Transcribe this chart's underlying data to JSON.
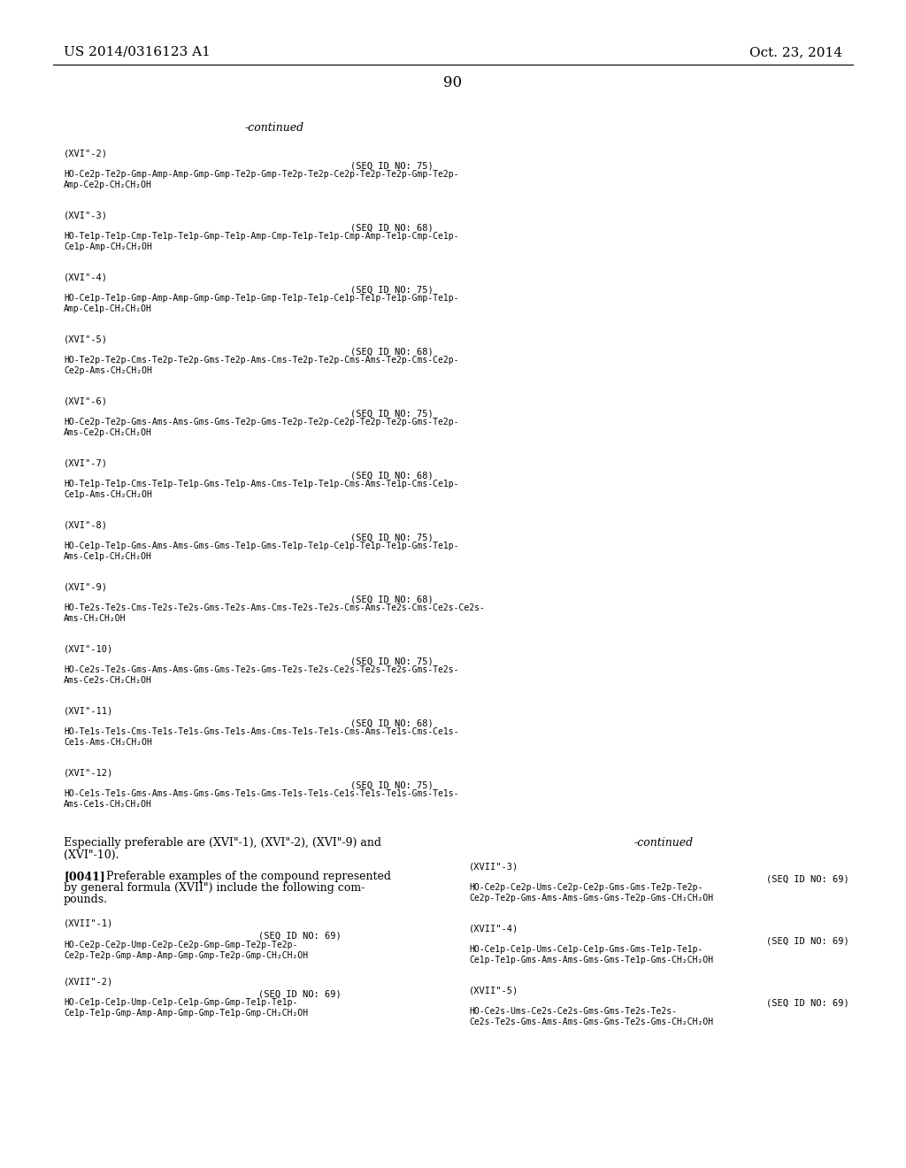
{
  "bg_color": "#ffffff",
  "header_left": "US 2014/0316123 A1",
  "header_right": "Oct. 23, 2014",
  "page_number": "90",
  "continued_top": "-continued",
  "sections": [
    {
      "label": "(XVI\"-2)",
      "seq_id": "(SEQ ID NO: 75)",
      "line1": "HO-Ce2p-Te2p-Gmp-Amp-Amp-Gmp-Gmp-Te2p-Gmp-Te2p-Te2p-Ce2p-Te2p-Te2p-Gmp-Te2p-",
      "line2": "Amp-Ce2p-CH₂CH₂OH"
    },
    {
      "label": "(XVI\"-3)",
      "seq_id": "(SEQ ID NO: 68)",
      "line1": "HO-Te1p-Te1p-Cmp-Te1p-Te1p-Gmp-Te1p-Amp-Cmp-Te1p-Te1p-Cmp-Amp-Te1p-Cmp-Ce1p-",
      "line2": "Ce1p-Amp-CH₂CH₂OH"
    },
    {
      "label": "(XVI\"-4)",
      "seq_id": "(SEQ ID NO: 75)",
      "line1": "HO-Ce1p-Te1p-Gmp-Amp-Amp-Gmp-Gmp-Te1p-Gmp-Te1p-Te1p-Ce1p-Te1p-Te1p-Gmp-Te1p-",
      "line2": "Amp-Ce1p-CH₂CH₂OH"
    },
    {
      "label": "(XVI\"-5)",
      "seq_id": "(SEQ ID NO: 68)",
      "line1": "HO-Te2p-Te2p-Cms-Te2p-Te2p-Gms-Te2p-Ams-Cms-Te2p-Te2p-Cms-Ams-Te2p-Cms-Ce2p-",
      "line2": "Ce2p-Ams-CH₂CH₂OH"
    },
    {
      "label": "(XVI\"-6)",
      "seq_id": "(SEQ ID NO: 75)",
      "line1": "HO-Ce2p-Te2p-Gms-Ams-Ams-Gms-Gms-Te2p-Gms-Te2p-Te2p-Ce2p-Te2p-Te2p-Gms-Te2p-",
      "line2": "Ams-Ce2p-CH₂CH₂OH"
    },
    {
      "label": "(XVI\"-7)",
      "seq_id": "(SEQ ID NO: 68)",
      "line1": "HO-Te1p-Te1p-Cms-Te1p-Te1p-Gms-Te1p-Ams-Cms-Te1p-Te1p-Cms-Ams-Te1p-Cms-Ce1p-",
      "line2": "Ce1p-Ams-CH₂CH₂OH"
    },
    {
      "label": "(XVI\"-8)",
      "seq_id": "(SEQ ID NO: 75)",
      "line1": "HO-Ce1p-Te1p-Gms-Ams-Ams-Gms-Gms-Te1p-Gms-Te1p-Te1p-Ce1p-Te1p-Te1p-Gms-Te1p-",
      "line2": "Ams-Ce1p-CH₂CH₂OH"
    },
    {
      "label": "(XVI\"-9)",
      "seq_id": "(SEQ ID NO: 68)",
      "line1": "HO-Te2s-Te2s-Cms-Te2s-Te2s-Gms-Te2s-Ams-Cms-Te2s-Te2s-Cms-Ams-Te2s-Cms-Ce2s-Ce2s-",
      "line2": "Ams-CH₂CH₂OH"
    },
    {
      "label": "(XVI\"-10)",
      "seq_id": "(SEQ ID NO: 75)",
      "line1": "HO-Ce2s-Te2s-Gms-Ams-Ams-Gms-Gms-Te2s-Gms-Te2s-Te2s-Ce2s-Te2s-Te2s-Gms-Te2s-",
      "line2": "Ams-Ce2s-CH₂CH₂OH"
    },
    {
      "label": "(XVI\"-11)",
      "seq_id": "(SEQ ID NO: 68)",
      "line1": "HO-Te1s-Te1s-Cms-Te1s-Te1s-Gms-Te1s-Ams-Cms-Te1s-Te1s-Cms-Ams-Te1s-Cms-Ce1s-",
      "line2": "Ce1s-Ams-CH₂CH₂OH"
    },
    {
      "label": "(XVI\"-12)",
      "seq_id": "(SEQ ID NO: 75)",
      "line1": "HO-Ce1s-Te1s-Gms-Ams-Ams-Gms-Gms-Te1s-Gms-Te1s-Te1s-Ce1s-Te1s-Te1s-Gms-Te1s-",
      "line2": "Ams-Ce1s-CH₂CH₂OH"
    }
  ],
  "esp_line1": "Especially preferable are (XVI\"-1), (XVI\"-2), (XVI\"-9) and",
  "esp_line2": "(XVI\"-10).",
  "right_continued": "-continued",
  "para_bold": "[0041]",
  "para_rest_line1": "  Preferable examples of the compound represented",
  "para_rest_line2": "by general formula (XVII\") include the following com-",
  "para_rest_line3": "pounds.",
  "bottom_left_sections": [
    {
      "label": "(XVII\"-1)",
      "seq_id": "(SEQ ID NO: 69)",
      "line1": "HO-Ce2p-Ce2p-Ump-Ce2p-Ce2p-Gmp-Gmp-Te2p-Te2p-",
      "line2": "Ce2p-Te2p-Gmp-Amp-Amp-Gmp-Gmp-Te2p-Gmp-CH₂CH₂OH"
    },
    {
      "label": "(XVII\"-2)",
      "seq_id": "(SEQ ID NO: 69)",
      "line1": "HO-Ce1p-Ce1p-Ump-Ce1p-Ce1p-Gmp-Gmp-Te1p-Te1p-",
      "line2": "Ce1p-Te1p-Gmp-Amp-Amp-Gmp-Gmp-Te1p-Gmp-CH₂CH₂OH"
    }
  ],
  "bottom_right_sections": [
    {
      "label": "(XVII\"-3)",
      "seq_id": "(SEQ ID NO: 69)",
      "line1": "HO-Ce2p-Ce2p-Ums-Ce2p-Ce2p-Gms-Gms-Te2p-Te2p-",
      "line2": "Ce2p-Te2p-Gms-Ams-Ams-Gms-Gms-Te2p-Gms-CH₂CH₂OH"
    },
    {
      "label": "(XVII\"-4)",
      "seq_id": "(SEQ ID NO: 69)",
      "line1": "HO-Ce1p-Ce1p-Ums-Ce1p-Ce1p-Gms-Gms-Te1p-Te1p-",
      "line2": "Ce1p-Te1p-Gms-Ams-Ams-Gms-Gms-Te1p-Gms-CH₂CH₂OH"
    },
    {
      "label": "(XVII\"-5)",
      "seq_id": "(SEQ ID NO: 69)",
      "line1": "HO-Ce2s-Ums-Ce2s-Ce2s-Gms-Gms-Te2s-Te2s-",
      "line2": "Ce2s-Te2s-Gms-Ams-Ams-Gms-Gms-Te2s-Gms-CH₂CH₂OH"
    }
  ]
}
